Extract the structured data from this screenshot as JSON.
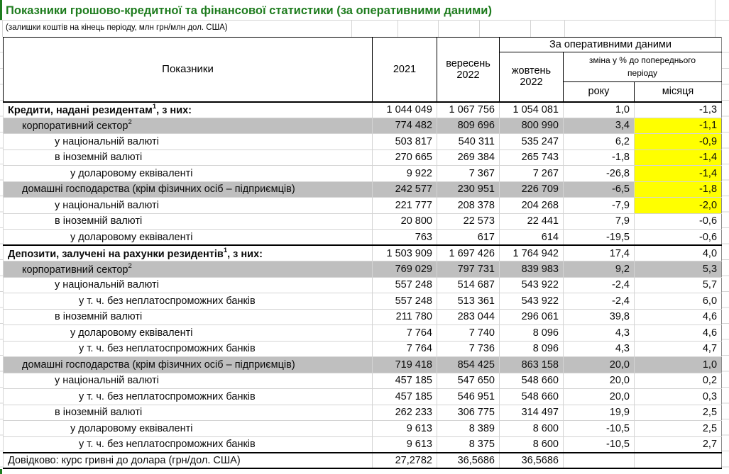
{
  "title": "Показники грошово-кредитної та фінансової статистики (за оперативними даними)",
  "subtitle": "(залишки коштів на кінець періоду, млн грн/млн дол. США)",
  "colors": {
    "title_green": "#1E7C1E",
    "left_bar_green": "#1E7C1E",
    "row_gray": "#BFBFBF",
    "highlight_yellow": "#FFFF00",
    "gridline": "#D4D4D4",
    "border_black": "#000000"
  },
  "header": {
    "indicators": "Показники",
    "col_2021": "2021",
    "col_sep2022": "вересень 2022",
    "operational_group": "За оперативними даними",
    "col_oct2022": "жовтень 2022",
    "change_group": "зміна у % до попереднього періоду",
    "col_year": "року",
    "col_month": "місяця"
  },
  "rows": [
    {
      "label": "Кредити, надані резидентам",
      "sup": "1",
      "suffix": ", з них:",
      "indent": 0,
      "bold": true,
      "top_border": true,
      "gray": false,
      "yellow": false,
      "values": [
        "1 044 049",
        "1 067 756",
        "1 054 081",
        "1,0",
        "-1,3"
      ]
    },
    {
      "label": "корпоративний сектор",
      "sup": "2",
      "suffix": "",
      "indent": 1,
      "bold": false,
      "top_border": false,
      "gray": true,
      "yellow": true,
      "values": [
        "774 482",
        "809 696",
        "800 990",
        "3,4",
        "-1,1"
      ]
    },
    {
      "label": "у національній валюті",
      "sup": "",
      "suffix": "",
      "indent": 2,
      "bold": false,
      "top_border": false,
      "gray": false,
      "yellow": true,
      "values": [
        "503 817",
        "540 311",
        "535 247",
        "6,2",
        "-0,9"
      ]
    },
    {
      "label": "в іноземній валюті",
      "sup": "",
      "suffix": "",
      "indent": 2,
      "bold": false,
      "top_border": false,
      "gray": false,
      "yellow": true,
      "values": [
        "270 665",
        "269 384",
        "265 743",
        "-1,8",
        "-1,4"
      ]
    },
    {
      "label": "у доларовому еквіваленті",
      "sup": "",
      "suffix": "",
      "indent": 3,
      "bold": false,
      "top_border": false,
      "gray": false,
      "yellow": true,
      "values": [
        "9 922",
        "7 367",
        "7 267",
        "-26,8",
        "-1,4"
      ]
    },
    {
      "label": "домашні господарства (крім фізичних осіб – підприємців)",
      "sup": "",
      "suffix": "",
      "indent": 1,
      "bold": false,
      "top_border": false,
      "gray": true,
      "yellow": true,
      "values": [
        "242 577",
        "230 951",
        "226 709",
        "-6,5",
        "-1,8"
      ]
    },
    {
      "label": "у національній валюті",
      "sup": "",
      "suffix": "",
      "indent": 2,
      "bold": false,
      "top_border": false,
      "gray": false,
      "yellow": true,
      "values": [
        "221 777",
        "208 378",
        "204 268",
        "-7,9",
        "-2,0"
      ]
    },
    {
      "label": "в іноземній валюті",
      "sup": "",
      "suffix": "",
      "indent": 2,
      "bold": false,
      "top_border": false,
      "gray": false,
      "yellow": false,
      "values": [
        "20 800",
        "22 573",
        "22 441",
        "7,9",
        "-0,6"
      ]
    },
    {
      "label": "у доларовому еквіваленті",
      "sup": "",
      "suffix": "",
      "indent": 3,
      "bold": false,
      "top_border": false,
      "gray": false,
      "yellow": false,
      "values": [
        "763",
        "617",
        "614",
        "-19,5",
        "-0,6"
      ]
    },
    {
      "label": "Депозити, залучені на рахунки резидентів",
      "sup": "1",
      "suffix": ", з них:",
      "indent": 0,
      "bold": true,
      "top_border": true,
      "gray": false,
      "yellow": false,
      "values": [
        "1 503 909",
        "1 697 426",
        "1 764 942",
        "17,4",
        "4,0"
      ]
    },
    {
      "label": "корпоративний сектор",
      "sup": "2",
      "suffix": "",
      "indent": 1,
      "bold": false,
      "top_border": false,
      "gray": true,
      "yellow": false,
      "values": [
        "769 029",
        "797 731",
        "839 983",
        "9,2",
        "5,3"
      ]
    },
    {
      "label": "у національній валюті",
      "sup": "",
      "suffix": "",
      "indent": 2,
      "bold": false,
      "top_border": false,
      "gray": false,
      "yellow": false,
      "values": [
        "557 248",
        "514 687",
        "543 922",
        "-2,4",
        "5,7"
      ]
    },
    {
      "label": "у т. ч. без неплатоспроможних банків",
      "sup": "",
      "suffix": "",
      "indent": 4,
      "bold": false,
      "top_border": false,
      "gray": false,
      "yellow": false,
      "values": [
        "557 248",
        "513 361",
        "543 922",
        "-2,4",
        "6,0"
      ]
    },
    {
      "label": "в іноземній валюті",
      "sup": "",
      "suffix": "",
      "indent": 2,
      "bold": false,
      "top_border": false,
      "gray": false,
      "yellow": false,
      "values": [
        "211 780",
        "283 044",
        "296 061",
        "39,8",
        "4,6"
      ]
    },
    {
      "label": "у доларовому еквіваленті",
      "sup": "",
      "suffix": "",
      "indent": 3,
      "bold": false,
      "top_border": false,
      "gray": false,
      "yellow": false,
      "values": [
        "7 764",
        "7 740",
        "8 096",
        "4,3",
        "4,6"
      ]
    },
    {
      "label": "у т. ч. без неплатоспроможних банків",
      "sup": "",
      "suffix": "",
      "indent": 4,
      "bold": false,
      "top_border": false,
      "gray": false,
      "yellow": false,
      "values": [
        "7 764",
        "7 736",
        "8 096",
        "4,3",
        "4,7"
      ]
    },
    {
      "label": "домашні господарства (крім фізичних осіб – підприємців)",
      "sup": "",
      "suffix": "",
      "indent": 1,
      "bold": false,
      "top_border": false,
      "gray": true,
      "yellow": false,
      "values": [
        "719 418",
        "854 425",
        "863 158",
        "20,0",
        "1,0"
      ]
    },
    {
      "label": "у національній валюті",
      "sup": "",
      "suffix": "",
      "indent": 2,
      "bold": false,
      "top_border": false,
      "gray": false,
      "yellow": false,
      "values": [
        "457 185",
        "547 650",
        "548 660",
        "20,0",
        "0,2"
      ]
    },
    {
      "label": "у т. ч. без неплатоспроможних банків",
      "sup": "",
      "suffix": "",
      "indent": 4,
      "bold": false,
      "top_border": false,
      "gray": false,
      "yellow": false,
      "values": [
        "457 185",
        "546 951",
        "548 660",
        "20,0",
        "0,3"
      ]
    },
    {
      "label": "в іноземній валюті",
      "sup": "",
      "suffix": "",
      "indent": 2,
      "bold": false,
      "top_border": false,
      "gray": false,
      "yellow": false,
      "values": [
        "262 233",
        "306 775",
        "314 497",
        "19,9",
        "2,5"
      ]
    },
    {
      "label": "у доларовому еквіваленті",
      "sup": "",
      "suffix": "",
      "indent": 3,
      "bold": false,
      "top_border": false,
      "gray": false,
      "yellow": false,
      "values": [
        "9 613",
        "8 389",
        "8 600",
        "-10,5",
        "2,5"
      ]
    },
    {
      "label": "у т. ч. без неплатоспроможних банків",
      "sup": "",
      "suffix": "",
      "indent": 4,
      "bold": false,
      "top_border": false,
      "gray": false,
      "yellow": false,
      "values": [
        "9 613",
        "8 375",
        "8 600",
        "-10,5",
        "2,7"
      ]
    },
    {
      "label": "Довідково: курс гривні до долара (грн/дол. США)",
      "sup": "",
      "suffix": "",
      "indent": 0,
      "bold": false,
      "top_border": true,
      "bottom_border": true,
      "gray": false,
      "yellow": false,
      "values": [
        "27,2782",
        "36,5686",
        "36,5686",
        "",
        ""
      ]
    }
  ]
}
